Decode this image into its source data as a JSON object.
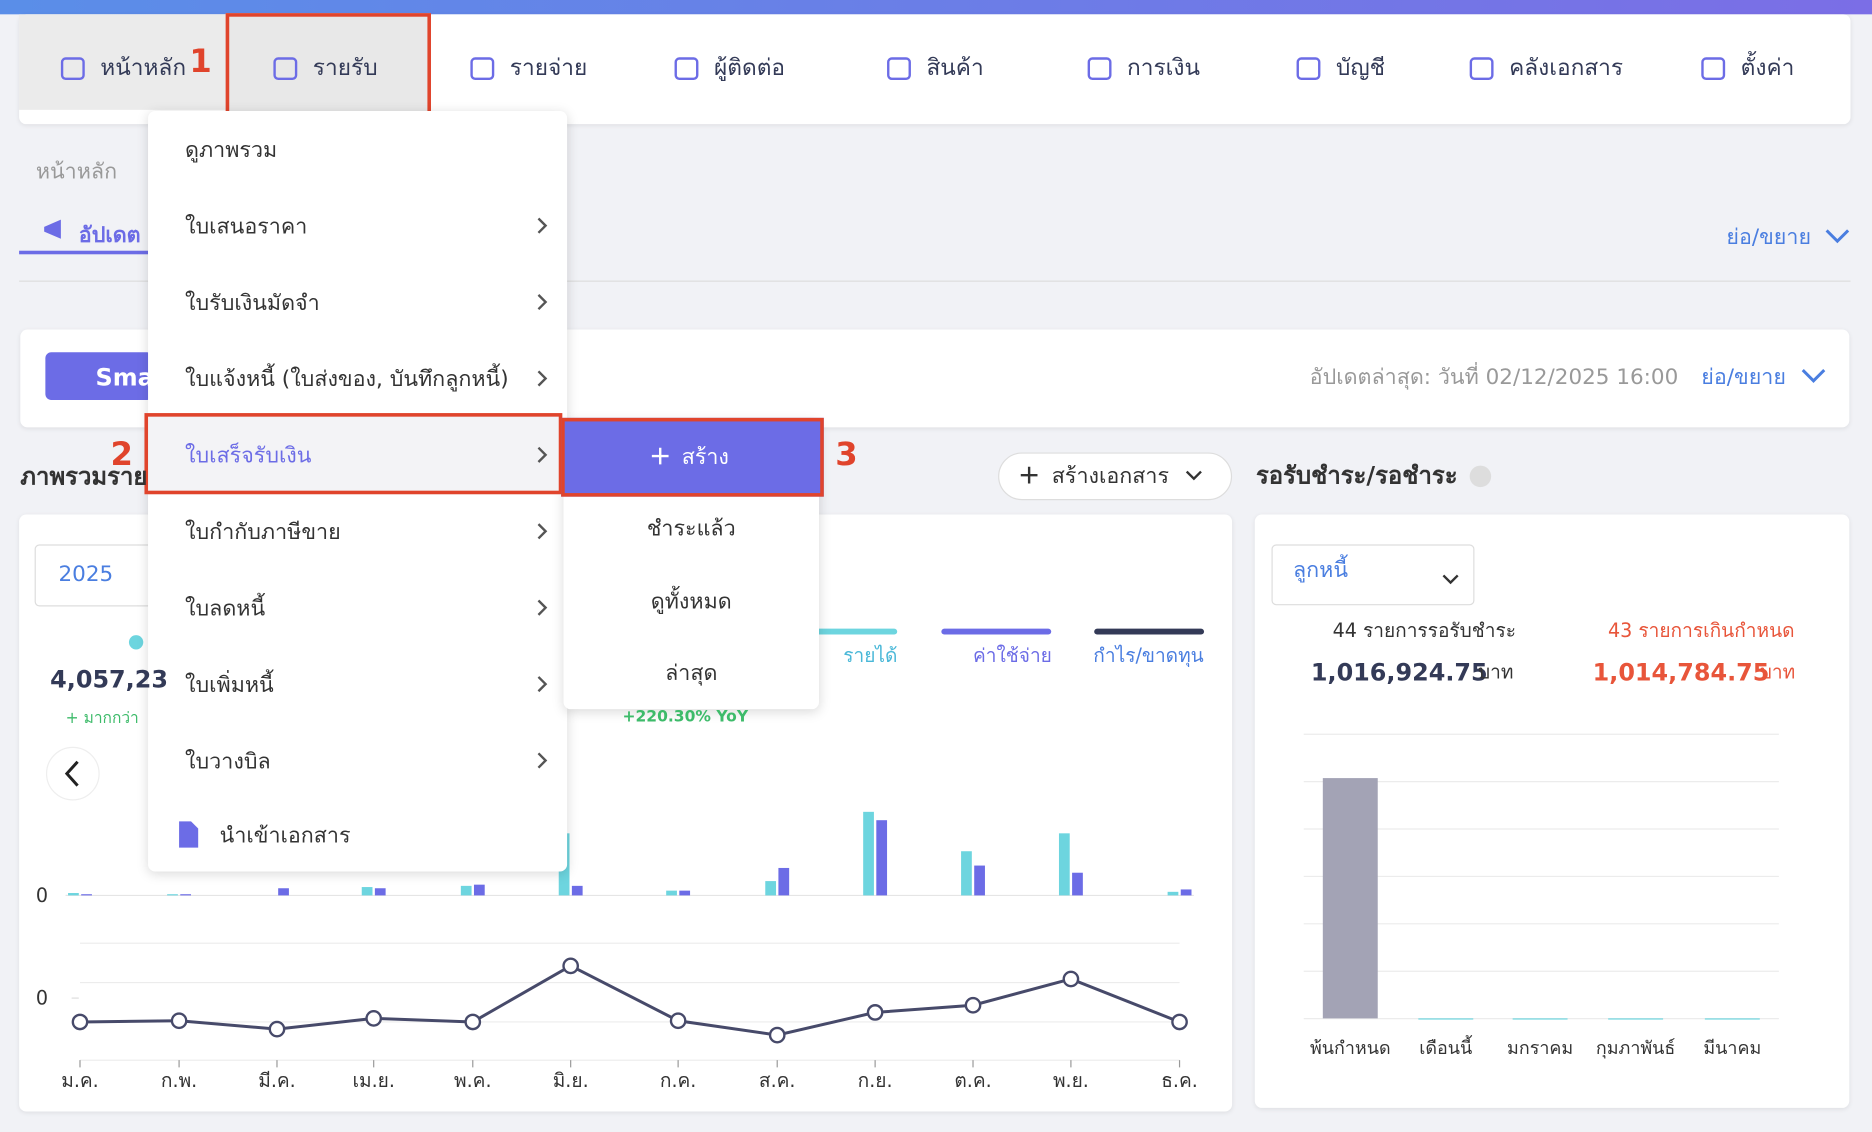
{
  "nav": {
    "items": [
      "หน้าหลัก",
      "รายรับ",
      "รายจ่าย",
      "ผู้ติดต่อ",
      "สินค้า",
      "การเงิน",
      "บัญชี",
      "คลังเอกสาร",
      "ตั้งค่า"
    ]
  },
  "annotations": [
    "1",
    "2",
    "3"
  ],
  "breadcrumb": "หน้าหลัก",
  "tab": "อัปเดต",
  "collapse": "ย่อ/ขยาย",
  "smart_banner": {
    "button": "Sma",
    "updated": "อัปเดตล่าสุด: วันที่ 02/12/2025 16:00",
    "collapse": "ย่อ/ขยาย"
  },
  "menu": {
    "items": [
      "ดูภาพรวม",
      "ใบเสนอราคา",
      "ใบรับเงินมัดจำ",
      "ใบแจ้งหนี้ (ใบส่งของ, บันทึกลูกหนี้)",
      "ใบเสร็จรับเงิน",
      "ใบกำกับภาษีขาย",
      "ใบลดหนี้",
      "ใบเพิ่มหนี้",
      "ใบวางบิล",
      "นำเข้าเอกสาร"
    ],
    "submenu": [
      "สร้าง",
      "ชำระแล้ว",
      "ดูทั้งหมด",
      "ล่าสุด"
    ]
  },
  "overview": {
    "title": "ภาพรวมราย",
    "create_button": "สร้างเอกสาร",
    "year": "2025",
    "total": "4,057,23",
    "change": "+ มากกว่า",
    "yoy": "+220.30% YoY",
    "bar_chart": {
      "type": "bar",
      "categories": [
        "ม.ค.",
        "ก.พ.",
        "มี.ค.",
        "เม.ย.",
        "พ.ค.",
        "มิ.ย.",
        "ก.ค.",
        "ส.ค.",
        "ก.ย.",
        "ต.ค.",
        "พ.ย.",
        "ธ.ค."
      ],
      "series": [
        {
          "name": "รายได้",
          "color": "#6dd5df",
          "values": [
            2,
            1,
            0,
            7,
            8,
            52,
            4,
            12,
            70,
            37,
            52,
            3
          ]
        },
        {
          "name": "ค่าใช้จ่าย",
          "color": "#6c6ce6",
          "values": [
            1,
            1,
            6,
            6,
            9,
            8,
            4,
            23,
            63,
            25,
            19,
            5
          ]
        }
      ],
      "ylim": [
        0,
        75
      ],
      "yticks": [
        0
      ]
    },
    "line_chart": {
      "type": "line",
      "name": "กำไร/ขาดทุน",
      "color": "#474a6a",
      "values": [
        -20,
        -19,
        -26,
        -17,
        -20,
        27,
        -19,
        -31,
        -12,
        -6,
        16,
        -20
      ],
      "ylim": [
        -52,
        46
      ],
      "yticks": [
        0
      ]
    }
  },
  "receivable": {
    "title": "รอรับชำระ/รอชำระ",
    "dropdown": "ลูกหนี้",
    "pending_count": "44 รายการรอรับชำระ",
    "pending_amount": "1,016,924.75",
    "overdue_count": "43 รายการเกินกำหนด",
    "overdue_amount": "1,014,784.75",
    "unit": "บาท",
    "chart": {
      "type": "bar",
      "categories": [
        "พ้นกำหนด",
        "เดือนนี้",
        "มกราคม",
        "กุมภาพันธ์",
        "มีนาคม"
      ],
      "values": [
        1014784.75,
        0,
        0,
        0,
        0
      ],
      "color": "#a3a3b5",
      "ylim": [
        0,
        1200000
      ]
    }
  }
}
